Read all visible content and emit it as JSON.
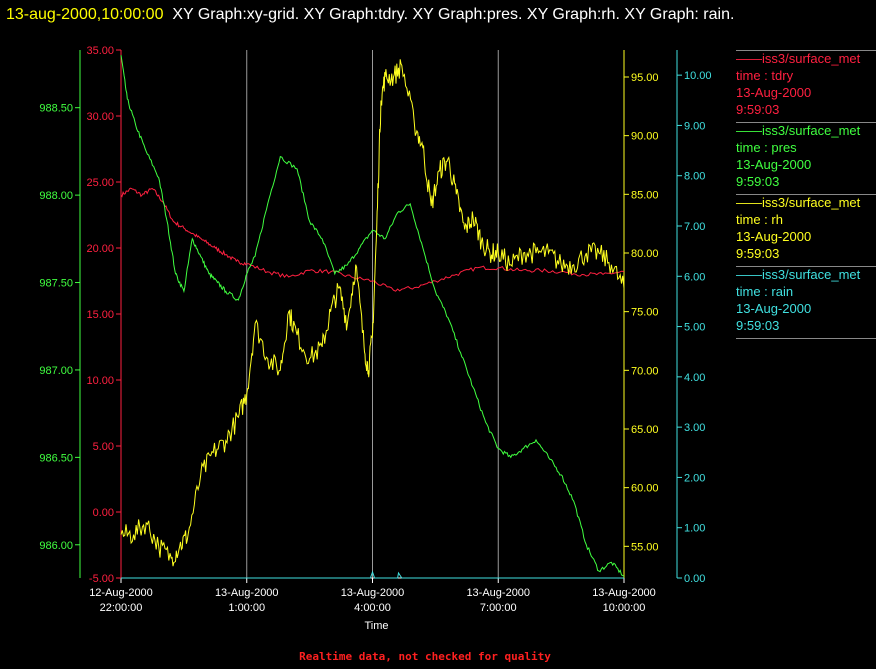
{
  "header": {
    "timestamp": "13-aug-2000,10:00:00",
    "graphs": "XY Graph:xy-grid.  XY Graph:tdry.  XY Graph:pres.  XY Graph:rh.  XY Graph: rain."
  },
  "footer": {
    "note": "Realtime data, not checked for quality"
  },
  "legend": [
    {
      "source": "iss3/surface_met",
      "field": "time : tdry",
      "date": "13-Aug-2000",
      "time": "9:59:03",
      "color": "#ff2040"
    },
    {
      "source": "iss3/surface_met",
      "field": "time : pres",
      "date": "13-Aug-2000",
      "time": "9:59:03",
      "color": "#40ff40"
    },
    {
      "source": "iss3/surface_met",
      "field": "time : rh",
      "date": "13-Aug-2000",
      "time": "9:59:03",
      "color": "#ffff20"
    },
    {
      "source": "iss3/surface_met",
      "field": "time : rain",
      "date": "13-Aug-2000",
      "time": "9:59:03",
      "color": "#40e0e0"
    }
  ],
  "chart_data": {
    "type": "line",
    "xlabel": "Time",
    "x_ticks": [
      {
        "date": "12-Aug-2000",
        "time": "22:00:00"
      },
      {
        "date": "13-Aug-2000",
        "time": "1:00:00"
      },
      {
        "date": "13-Aug-2000",
        "time": "4:00:00"
      },
      {
        "date": "13-Aug-2000",
        "time": "7:00:00"
      },
      {
        "date": "13-Aug-2000",
        "time": "10:00:00"
      }
    ],
    "x_hours": [
      0,
      3,
      6,
      9,
      12
    ],
    "grid_vertical": true,
    "axes": {
      "tdry": {
        "ylim": [
          -5,
          35
        ],
        "ticks": [
          "-5.00",
          "0.00",
          "5.00",
          "10.00",
          "15.00",
          "20.00",
          "25.00",
          "30.00",
          "35.00"
        ],
        "tick_values": [
          -5,
          0,
          5,
          10,
          15,
          20,
          25,
          30,
          35
        ],
        "color": "#ff2040"
      },
      "pres": {
        "ylim": [
          985.81,
          988.83
        ],
        "ticks": [
          "986.00",
          "986.50",
          "987.00",
          "987.50",
          "988.00",
          "988.50"
        ],
        "tick_values": [
          986,
          986.5,
          987,
          987.5,
          988,
          988.5
        ],
        "color": "#40ff40"
      },
      "rh": {
        "ylim": [
          52.3,
          97.3
        ],
        "ticks": [
          "55.00",
          "60.00",
          "65.00",
          "70.00",
          "75.00",
          "80.00",
          "85.00",
          "90.00",
          "95.00"
        ],
        "tick_values": [
          55,
          60,
          65,
          70,
          75,
          80,
          85,
          90,
          95
        ],
        "color": "#ffff20"
      },
      "rain": {
        "ylim": [
          0,
          10.5
        ],
        "ticks": [
          "0.00",
          "1.00",
          "2.00",
          "3.00",
          "4.00",
          "5.00",
          "6.00",
          "7.00",
          "8.00",
          "9.00",
          "10.00"
        ],
        "tick_values": [
          0,
          1,
          2,
          3,
          4,
          5,
          6,
          7,
          8,
          9,
          10
        ],
        "color": "#40e0e0"
      }
    },
    "series": [
      {
        "name": "tdry",
        "axis": "tdry",
        "jitter": 0.15,
        "x": [
          0,
          0.25,
          0.5,
          0.75,
          1.0,
          1.25,
          1.5,
          1.75,
          2.0,
          2.25,
          2.5,
          2.75,
          3.0,
          3.5,
          4.0,
          4.5,
          5.0,
          5.5,
          6.0,
          6.5,
          7.0,
          7.5,
          8.0,
          8.5,
          9.0,
          9.5,
          10.0,
          10.5,
          11.0,
          11.5,
          12.0
        ],
        "values": [
          24.0,
          24.5,
          24.0,
          24.5,
          23.5,
          22.0,
          21.5,
          21.0,
          20.5,
          20.0,
          19.5,
          19.0,
          18.8,
          18.2,
          17.8,
          18.3,
          18.2,
          17.8,
          17.5,
          16.8,
          17.0,
          17.5,
          18.0,
          18.5,
          18.5,
          18.3,
          18.3,
          18.2,
          18.0,
          18.0,
          18.2
        ]
      },
      {
        "name": "pres",
        "axis": "pres",
        "jitter": 0.012,
        "x": [
          0,
          0.15,
          0.35,
          0.6,
          0.9,
          1.1,
          1.3,
          1.5,
          1.7,
          1.9,
          2.1,
          2.3,
          2.5,
          2.8,
          3.0,
          3.2,
          3.5,
          3.8,
          4.2,
          4.5,
          4.8,
          5.1,
          5.4,
          5.7,
          6.0,
          6.3,
          6.6,
          6.9,
          7.2,
          7.5,
          7.8,
          8.1,
          8.4,
          8.7,
          9.0,
          9.3,
          9.6,
          9.9,
          10.2,
          10.5,
          10.8,
          11.1,
          11.4,
          11.7,
          12.0
        ],
        "values": [
          988.8,
          988.55,
          988.4,
          988.25,
          988.1,
          987.85,
          987.55,
          987.45,
          987.75,
          987.65,
          987.55,
          987.5,
          987.45,
          987.4,
          987.55,
          987.65,
          987.95,
          988.22,
          988.15,
          987.85,
          987.75,
          987.55,
          987.6,
          987.7,
          987.8,
          987.75,
          987.9,
          987.95,
          987.7,
          987.45,
          987.3,
          987.1,
          986.9,
          986.7,
          986.55,
          986.5,
          986.55,
          986.6,
          986.5,
          986.4,
          986.25,
          986.0,
          985.85,
          985.9,
          985.82
        ]
      },
      {
        "name": "rh",
        "axis": "rh",
        "jitter": 0.9,
        "x": [
          0,
          0.3,
          0.6,
          0.9,
          1.2,
          1.4,
          1.6,
          1.9,
          2.2,
          2.5,
          2.8,
          3.0,
          3.2,
          3.5,
          3.8,
          4.0,
          4.2,
          4.5,
          4.8,
          5.0,
          5.2,
          5.4,
          5.6,
          5.8,
          5.9,
          6.0,
          6.1,
          6.2,
          6.3,
          6.5,
          6.7,
          7.0,
          7.2,
          7.4,
          7.6,
          7.8,
          8.0,
          8.2,
          8.4,
          8.6,
          8.8,
          9.0,
          9.3,
          9.6,
          9.9,
          10.2,
          10.5,
          10.8,
          11.1,
          11.4,
          11.7,
          12.0
        ],
        "values": [
          56,
          56,
          57,
          55,
          54,
          55,
          56,
          61,
          63,
          64,
          66,
          68,
          74,
          71,
          70,
          75,
          73,
          71,
          72,
          75,
          77,
          74,
          79,
          72,
          70,
          73,
          82,
          93,
          95,
          95,
          96,
          91,
          89,
          84,
          87,
          88,
          85,
          82,
          83,
          81,
          80,
          80,
          79,
          80,
          80,
          80,
          79,
          79,
          80,
          80,
          79,
          77
        ]
      },
      {
        "name": "rain",
        "axis": "rain",
        "jitter": 0,
        "x": [
          0,
          5.95,
          6.0,
          6.05,
          6.5,
          6.6,
          6.62,
          6.7,
          12.0
        ],
        "values": [
          0,
          0,
          0.12,
          0,
          0,
          0,
          0.1,
          0,
          0
        ]
      }
    ]
  }
}
